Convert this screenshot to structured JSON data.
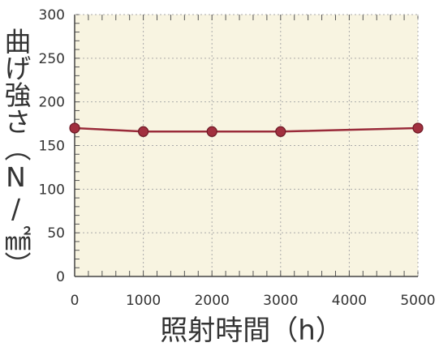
{
  "chart_data": {
    "type": "line",
    "xlabel": "照射時間（h）",
    "ylabel": "曲げ強さ（N/㎟）",
    "x": [
      0,
      1000,
      2000,
      3000,
      5000
    ],
    "series": [
      {
        "values": [
          170,
          166,
          166,
          166,
          170
        ]
      }
    ],
    "xlim": [
      0,
      5000
    ],
    "ylim": [
      0,
      300
    ],
    "xticks": [
      "0",
      "1000",
      "2000",
      "3000",
      "4000",
      "5000"
    ],
    "yticks": [
      "0",
      "50",
      "100",
      "150",
      "200",
      "250",
      "300"
    ],
    "grid": true,
    "colors": {
      "plot_background": "#f8f4e1",
      "line": "#9a2b3a",
      "marker": "#a1303f",
      "grid": "#aaaaaa"
    }
  }
}
